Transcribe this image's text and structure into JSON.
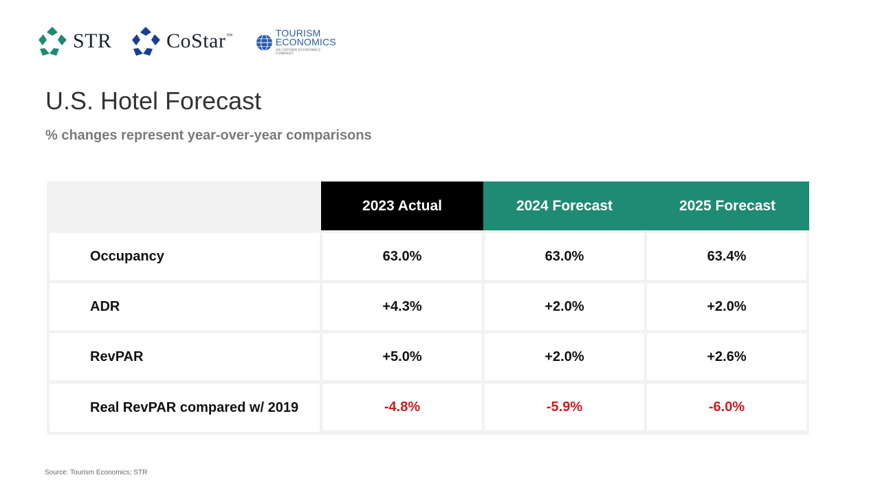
{
  "logos": {
    "str": "STR",
    "costar": "CoStar",
    "costar_tm": "™",
    "te_line1": "TOURISM",
    "te_line2": "ECONOMICS",
    "te_sub": "AN OXFORD ECONOMICS COMPANY"
  },
  "title": "U.S. Hotel Forecast",
  "subtitle": "% changes represent year-over-year comparisons",
  "table": {
    "columns": [
      "",
      "2023 Actual",
      "2024 Forecast",
      "2025 Forecast"
    ],
    "rows": [
      {
        "label": "Occupancy",
        "values": [
          "63.0%",
          "63.0%",
          "63.4%"
        ]
      },
      {
        "label": "ADR",
        "values": [
          "+4.3%",
          "+2.0%",
          "+2.0%"
        ]
      },
      {
        "label": "RevPAR",
        "values": [
          "+5.0%",
          "+2.0%",
          "+2.6%"
        ]
      },
      {
        "label": "Real RevPAR compared w/ 2019",
        "values": [
          "-4.8%",
          "-5.9%",
          "-6.0%"
        ]
      }
    ]
  },
  "colors": {
    "header_actual": "#000000",
    "header_forecast": "#1e8b74",
    "negative": "#d0191e"
  },
  "source": "Source: Tourism Economics; STR"
}
